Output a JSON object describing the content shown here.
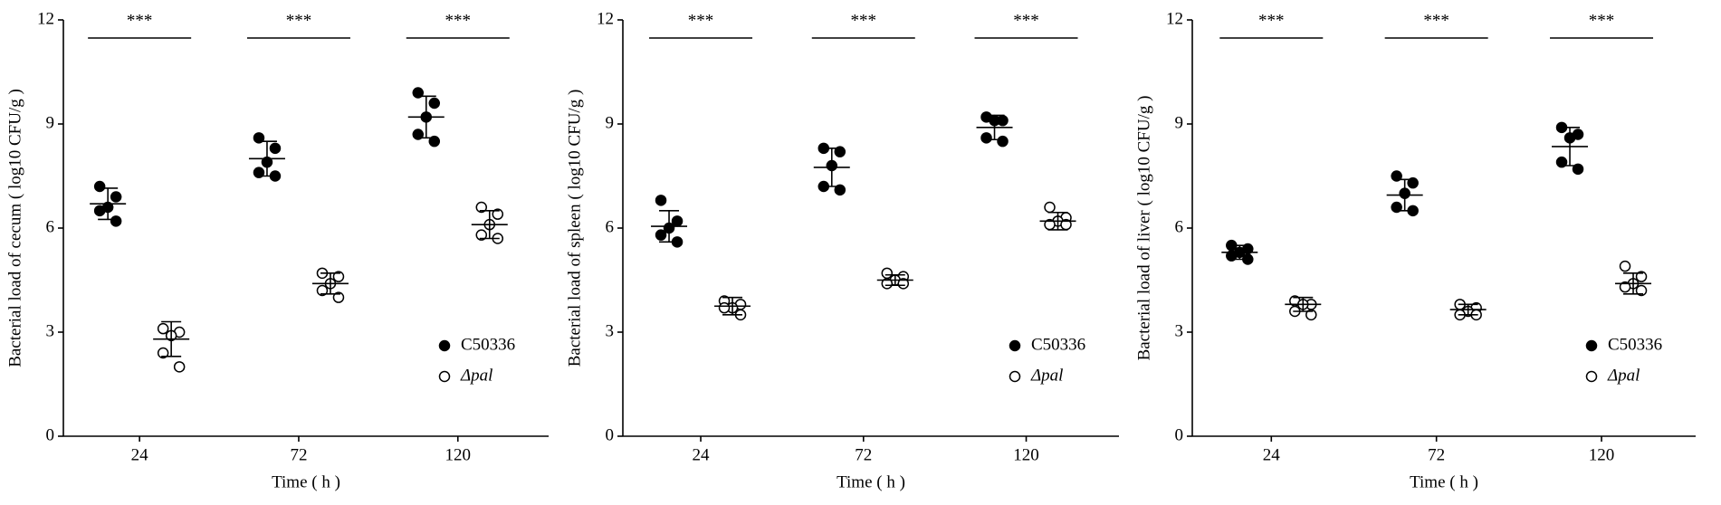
{
  "chart_data": [
    {
      "type": "scatter",
      "y_label": "Bacterial load of cecum ( log10 CFU/g )",
      "x_label": "Time ( h )",
      "categories": [
        "24",
        "72",
        "120"
      ],
      "ylim": [
        0,
        12
      ],
      "yticks": [
        0,
        3,
        6,
        9,
        12
      ],
      "significance": [
        "***",
        "***",
        "***"
      ],
      "legend": "lower right",
      "series": [
        {
          "name": "C50336",
          "color": "#000000",
          "marker": "filled",
          "points": [
            [
              7.2,
              6.9,
              6.6,
              6.5,
              6.2
            ],
            [
              8.6,
              8.3,
              7.9,
              7.6,
              7.5
            ],
            [
              9.9,
              9.6,
              9.2,
              8.7,
              8.5
            ]
          ],
          "mean": [
            6.7,
            8.0,
            9.2
          ],
          "sd": [
            0.45,
            0.5,
            0.6
          ]
        },
        {
          "name": "Δpal",
          "color": "#000000",
          "marker": "open",
          "points": [
            [
              3.1,
              3.0,
              2.9,
              2.4,
              2.0
            ],
            [
              4.7,
              4.6,
              4.4,
              4.2,
              4.0
            ],
            [
              6.6,
              6.4,
              6.1,
              5.8,
              5.7
            ]
          ],
          "mean": [
            2.8,
            4.4,
            6.1
          ],
          "sd": [
            0.5,
            0.3,
            0.4
          ]
        }
      ]
    },
    {
      "type": "scatter",
      "y_label": "Bacterial load of spleen ( log10 CFU/g )",
      "x_label": "Time ( h )",
      "categories": [
        "24",
        "72",
        "120"
      ],
      "ylim": [
        0,
        12
      ],
      "yticks": [
        0,
        3,
        6,
        9,
        12
      ],
      "significance": [
        "***",
        "***",
        "***"
      ],
      "legend": "lower right",
      "series": [
        {
          "name": "C50336",
          "color": "#000000",
          "marker": "filled",
          "points": [
            [
              6.8,
              6.2,
              6.0,
              5.8,
              5.6
            ],
            [
              8.3,
              8.2,
              7.8,
              7.2,
              7.1
            ],
            [
              9.2,
              9.1,
              9.1,
              8.6,
              8.5
            ]
          ],
          "mean": [
            6.05,
            7.75,
            8.9
          ],
          "sd": [
            0.45,
            0.55,
            0.35
          ]
        },
        {
          "name": "Δpal",
          "color": "#000000",
          "marker": "open",
          "points": [
            [
              3.9,
              3.8,
              3.7,
              3.7,
              3.5
            ],
            [
              4.7,
              4.6,
              4.5,
              4.4,
              4.4
            ],
            [
              6.6,
              6.3,
              6.2,
              6.1,
              6.1
            ]
          ],
          "mean": [
            3.75,
            4.5,
            6.2
          ],
          "sd": [
            0.25,
            0.15,
            0.25
          ]
        }
      ]
    },
    {
      "type": "scatter",
      "y_label": "Bacterial load of liver ( log10 CFU/g )",
      "x_label": "Time ( h )",
      "categories": [
        "24",
        "72",
        "120"
      ],
      "ylim": [
        0,
        12
      ],
      "yticks": [
        0,
        3,
        6,
        9,
        12
      ],
      "significance": [
        "***",
        "***",
        "***"
      ],
      "legend": "lower right",
      "series": [
        {
          "name": "C50336",
          "color": "#000000",
          "marker": "filled",
          "points": [
            [
              5.5,
              5.4,
              5.3,
              5.2,
              5.1
            ],
            [
              7.5,
              7.3,
              7.0,
              6.6,
              6.5
            ],
            [
              8.9,
              8.7,
              8.6,
              7.9,
              7.7
            ]
          ],
          "mean": [
            5.3,
            6.95,
            8.35
          ],
          "sd": [
            0.2,
            0.45,
            0.55
          ]
        },
        {
          "name": "Δpal",
          "color": "#000000",
          "marker": "open",
          "points": [
            [
              3.9,
              3.8,
              3.8,
              3.6,
              3.5
            ],
            [
              3.8,
              3.7,
              3.6,
              3.5,
              3.5
            ],
            [
              4.9,
              4.6,
              4.4,
              4.3,
              4.2
            ]
          ],
          "mean": [
            3.8,
            3.65,
            4.4
          ],
          "sd": [
            0.2,
            0.15,
            0.3
          ]
        }
      ]
    }
  ]
}
